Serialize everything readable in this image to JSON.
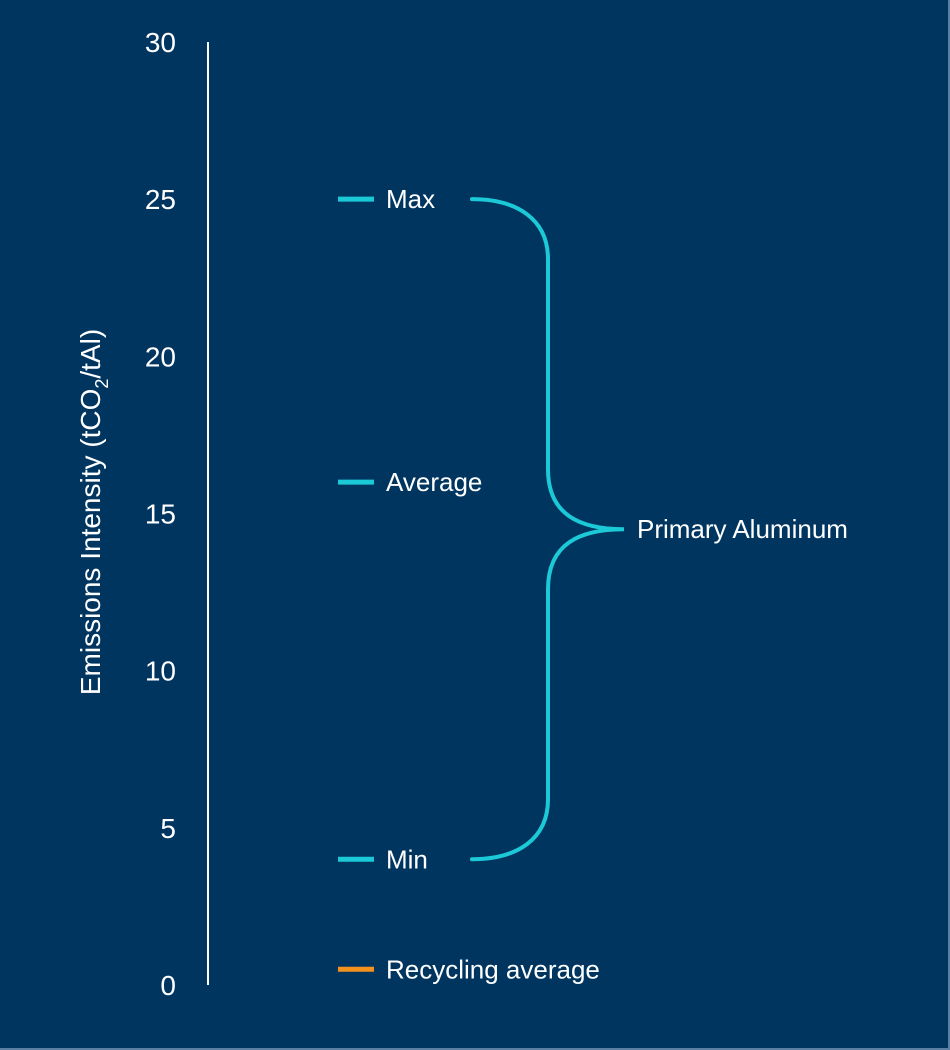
{
  "colors": {
    "background": "#003560",
    "axis": "#ffffff",
    "primary": "#1cc9d6",
    "recycling": "#f5921e",
    "text": "#ffffff"
  },
  "chart_data": {
    "type": "range-annotation",
    "title": "",
    "ylabel": "Emissions Intensity (tCO2/tAl)",
    "ylabel_parts": {
      "prefix": "Emissions Intensity (tCO",
      "subscript": "2",
      "suffix": "/tAl)"
    },
    "ylim": [
      0,
      30
    ],
    "yticks": [
      0,
      5,
      10,
      15,
      20,
      25,
      30
    ],
    "grid": false,
    "markers": [
      {
        "name": "Max",
        "value": 25,
        "group": "Primary Aluminum",
        "color": "#1cc9d6"
      },
      {
        "name": "Average",
        "value": 16,
        "group": "Primary Aluminum",
        "color": "#1cc9d6"
      },
      {
        "name": "Min",
        "value": 4,
        "group": "Primary Aluminum",
        "color": "#1cc9d6"
      },
      {
        "name": "Recycling average",
        "value": 0.5,
        "group": "Recycling",
        "color": "#f5921e"
      }
    ],
    "brace": {
      "label": "Primary Aluminum",
      "from": 4,
      "to": 25,
      "point": 14.5
    }
  }
}
